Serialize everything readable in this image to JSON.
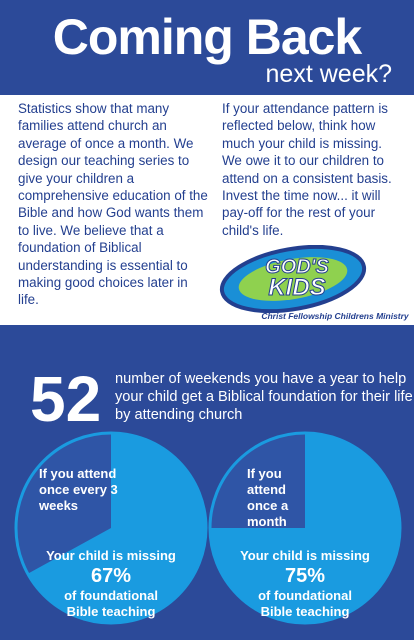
{
  "header": {
    "title": "Coming Back",
    "subtitle": "next week?"
  },
  "columns": [
    "Statistics show that many families attend church an average of once a month. We design our teaching series to give your children a comprehensive education of the Bible and how God wants them to live.  We believe that a foundation of Biblical understanding is essential to making good choices later in life.",
    "If your attendance pattern is reflected below, think how much your child is missing. We owe it to our children to attend on a consistent basis. Invest the time now... it will pay-off for the rest of your child's life."
  ],
  "logo": {
    "line1": "GOD'S",
    "line2": "KIDS",
    "tagline": "Christ Fellowship Childrens Ministry"
  },
  "stat": {
    "number": 52,
    "text": "number of weekends you have a year to help your child get a Biblical foundation for their life by attending church"
  },
  "pies": [
    {
      "attend_text": "If you attend once every 3 weeks",
      "missing_text": "Your child is missing",
      "value": 67,
      "value_label": "67%",
      "suffix_text": "of foundational Bible teaching"
    },
    {
      "attend_text": "If you attend once a month",
      "missing_text": "Your child is missing",
      "value": 75,
      "value_label": "75%",
      "suffix_text": "of foundational Bible teaching"
    }
  ]
}
